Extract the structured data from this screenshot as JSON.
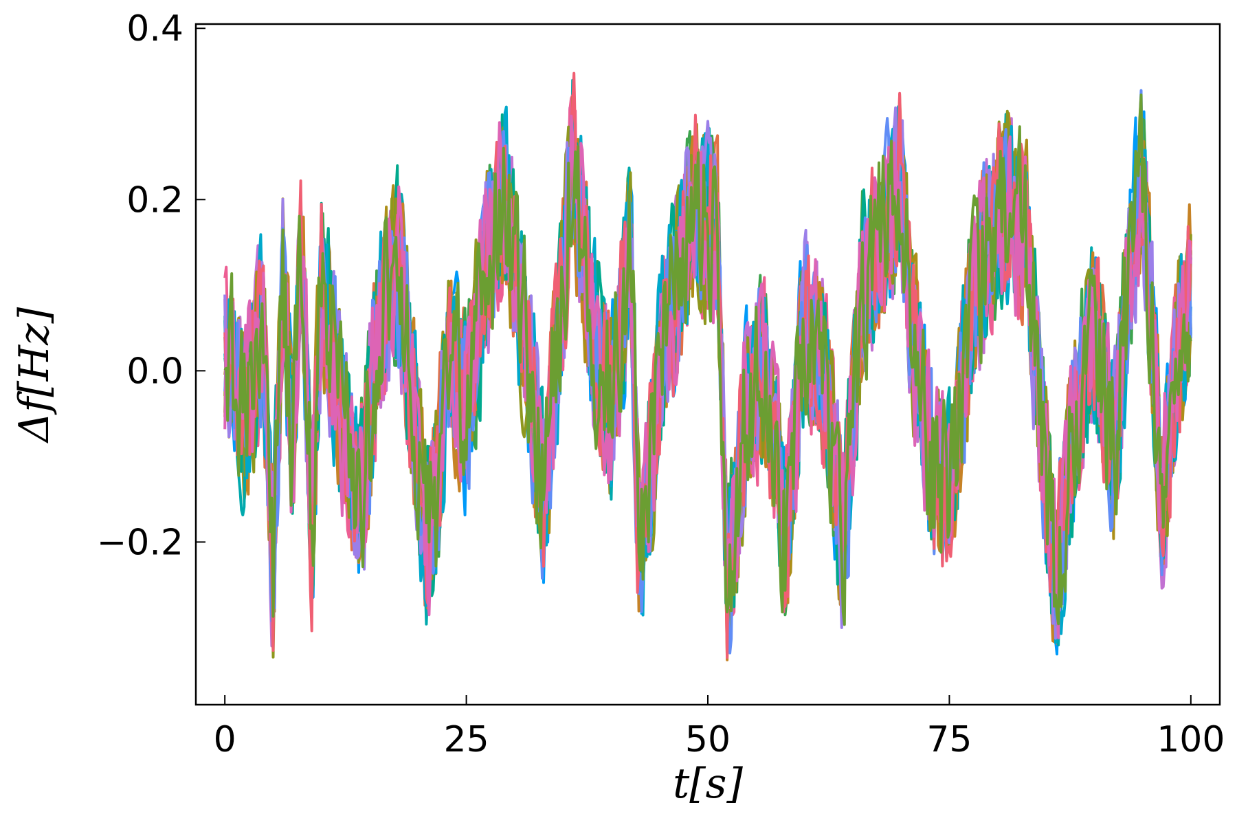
{
  "chart_data": {
    "type": "line",
    "title": "",
    "xlabel": "t[s]",
    "ylabel": "Δf[Hz]",
    "xlim": [
      -3,
      103
    ],
    "ylim": [
      -0.39,
      0.405
    ],
    "xticks": [
      0,
      25,
      50,
      75,
      100
    ],
    "xtick_labels": [
      "0",
      "25",
      "50",
      "75",
      "100"
    ],
    "yticks": [
      -0.2,
      0.0,
      0.2,
      0.4
    ],
    "ytick_labels": [
      "−0.2",
      "0.0",
      "0.2",
      "0.4"
    ],
    "grid": false,
    "legend": "none",
    "colors": [
      "#009af9",
      "#e26f46",
      "#3da44d",
      "#c271d2",
      "#ac8e18",
      "#00a9ad",
      "#ed5e93",
      "#c68225",
      "#00a98d",
      "#8e971e",
      "#00a8cb",
      "#9b7fe9",
      "#618df6",
      "#f05f73",
      "#dd64b5",
      "#6b9e32"
    ],
    "series_envelope": {
      "t": [
        0,
        2,
        4,
        5,
        6,
        7,
        8,
        9,
        10,
        12,
        14,
        16,
        18,
        20,
        21,
        22,
        23,
        25,
        27,
        29,
        31,
        33,
        35,
        36,
        38,
        40,
        42,
        43,
        45,
        47,
        49,
        51,
        52,
        54,
        56,
        58,
        60,
        62,
        63,
        64,
        66,
        68,
        70,
        71,
        73,
        75,
        77,
        79,
        81,
        83,
        84,
        86,
        88,
        90,
        92,
        94,
        95,
        97,
        99,
        100
      ],
      "y": [
        0.02,
        -0.05,
        0.05,
        -0.25,
        0.1,
        -0.1,
        0.15,
        -0.2,
        0.1,
        -0.05,
        -0.15,
        0.05,
        0.12,
        -0.1,
        -0.2,
        -0.15,
        0.02,
        -0.05,
        0.12,
        0.2,
        0.05,
        -0.15,
        0.1,
        0.25,
        0.05,
        -0.05,
        0.15,
        -0.25,
        0.0,
        0.12,
        0.2,
        0.15,
        -0.25,
        -0.05,
        0.0,
        -0.2,
        0.05,
        0.0,
        -0.1,
        -0.2,
        0.1,
        0.15,
        0.22,
        0.05,
        -0.1,
        -0.15,
        0.05,
        0.15,
        0.2,
        0.15,
        0.0,
        -0.25,
        -0.05,
        0.05,
        -0.1,
        0.15,
        0.22,
        -0.15,
        0.05,
        0.1
      ],
      "amplitude": 0.14
    }
  }
}
